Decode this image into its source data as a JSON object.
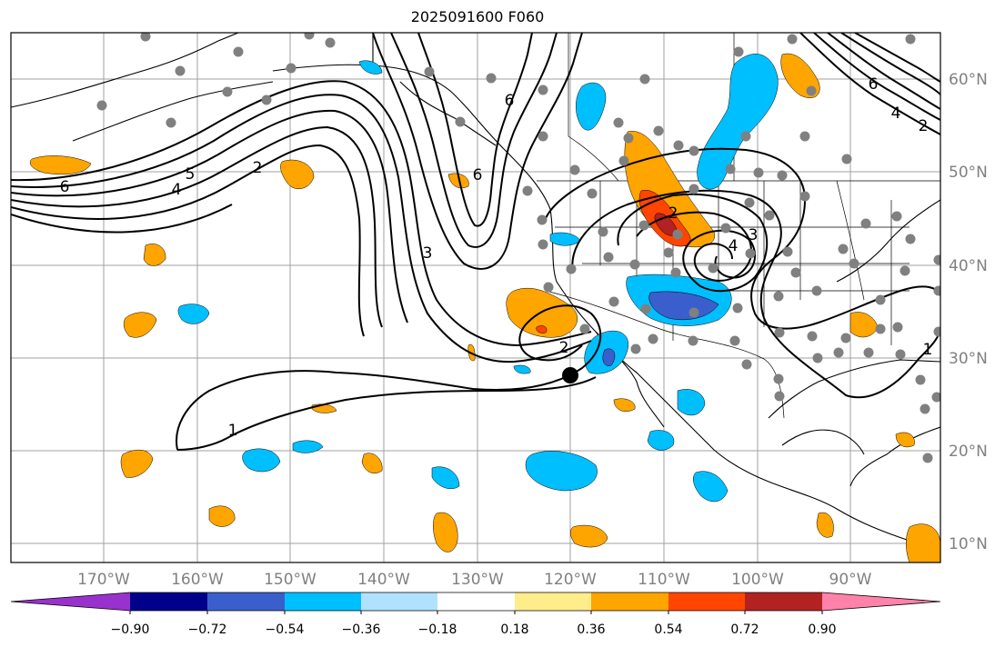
{
  "title": "2025091600 F060",
  "lon_labels": [
    "170°W",
    "160°W",
    "150°W",
    "140°W",
    "130°W",
    "120°W",
    "110°W",
    "100°W",
    "90°W"
  ],
  "lat_labels": [
    "10°N",
    "20°N",
    "30°N",
    "40°N",
    "50°N",
    "60°N"
  ],
  "contour_labels": {
    "pacific_6": "6",
    "pacific_5": "5",
    "pacific_4": "4",
    "pacific_2": "2",
    "bc_6": "6",
    "coast_6": "6",
    "trough_3": "3",
    "low_2": "2",
    "low_1": "1",
    "rockies_2": "2",
    "rockies_3": "3",
    "rockies_4": "4",
    "east_1": "1",
    "ne_6": "6",
    "ne_4": "4",
    "ne_2": "2"
  },
  "colorbar": {
    "ticks": [
      "−0.90",
      "−0.72",
      "−0.54",
      "−0.36",
      "−0.18",
      "0.18",
      "0.36",
      "0.54",
      "0.72",
      "0.90"
    ],
    "colors": [
      "#9932cc",
      "#00008b",
      "#3a5fcd",
      "#00bfff",
      "#b0e2ff",
      "#ffffff",
      "#ffec8b",
      "#ffa500",
      "#ff4500",
      "#b22222",
      "#ff82ab"
    ]
  },
  "marker_color": "#808080",
  "station_marker": "black-dot"
}
